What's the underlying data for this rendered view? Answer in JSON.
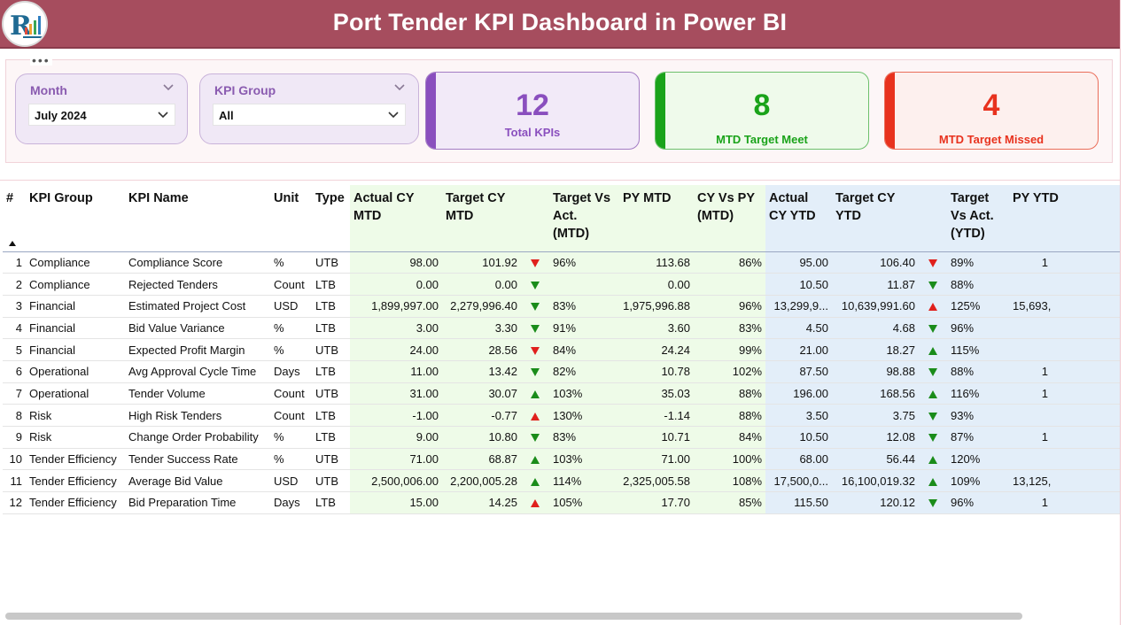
{
  "header": {
    "title": "Port Tender KPI Dashboard in Power BI"
  },
  "filters": {
    "month": {
      "label": "Month",
      "value": "July 2024"
    },
    "kpi_group": {
      "label": "KPI Group",
      "value": "All"
    }
  },
  "cards": {
    "total": {
      "value": "12",
      "label": "Total KPIs",
      "color": "#8a4fbe"
    },
    "meet": {
      "value": "8",
      "label": "MTD Target Meet",
      "color": "#1aa31a"
    },
    "missed": {
      "value": "4",
      "label": "MTD Target Missed",
      "color": "#e8321e"
    }
  },
  "colors": {
    "header_bg": "#a64d5e",
    "mtd_bg": "#eefbe8",
    "ytd_bg": "#e3eef9",
    "arrow_green": "#1a8c1a",
    "arrow_red": "#e0201c"
  },
  "table": {
    "headers": {
      "num": "#",
      "group": "KPI Group",
      "name": "KPI Name",
      "unit": "Unit",
      "type": "Type",
      "actual_mtd": "Actual CY MTD",
      "target_mtd": "Target CY MTD",
      "tva_mtd": "Target Vs Act. (MTD)",
      "py_mtd": "PY MTD",
      "cy_vs_py_mtd": "CY Vs PY (MTD)",
      "actual_ytd": "Actual CY YTD",
      "target_ytd": "Target CY YTD",
      "tva_ytd": "Target Vs Act. (YTD)",
      "py_ytd": "PY YTD"
    },
    "rows": [
      {
        "num": "1",
        "group": "Compliance",
        "name": "Compliance Score",
        "unit": "%",
        "type": "UTB",
        "actual_mtd": "98.00",
        "target_mtd": "101.92",
        "mtd_arrow": "down-red",
        "tva_mtd": "96%",
        "py_mtd": "113.68",
        "cvp_mtd": "86%",
        "actual_ytd": "95.00",
        "target_ytd": "106.40",
        "ytd_arrow": "down-red",
        "tva_ytd": "89%",
        "py_ytd": "1"
      },
      {
        "num": "2",
        "group": "Compliance",
        "name": "Rejected Tenders",
        "unit": "Count",
        "type": "LTB",
        "actual_mtd": "0.00",
        "target_mtd": "0.00",
        "mtd_arrow": "down-green",
        "tva_mtd": "",
        "py_mtd": "0.00",
        "cvp_mtd": "",
        "actual_ytd": "10.50",
        "target_ytd": "11.87",
        "ytd_arrow": "down-green",
        "tva_ytd": "88%",
        "py_ytd": ""
      },
      {
        "num": "3",
        "group": "Financial",
        "name": "Estimated Project Cost",
        "unit": "USD",
        "type": "LTB",
        "actual_mtd": "1,899,997.00",
        "target_mtd": "2,279,996.40",
        "mtd_arrow": "down-green",
        "tva_mtd": "83%",
        "py_mtd": "1,975,996.88",
        "cvp_mtd": "96%",
        "actual_ytd": "13,299,9...",
        "target_ytd": "10,639,991.60",
        "ytd_arrow": "up-red",
        "tva_ytd": "125%",
        "py_ytd": "15,693,"
      },
      {
        "num": "4",
        "group": "Financial",
        "name": "Bid Value Variance",
        "unit": "%",
        "type": "LTB",
        "actual_mtd": "3.00",
        "target_mtd": "3.30",
        "mtd_arrow": "down-green",
        "tva_mtd": "91%",
        "py_mtd": "3.60",
        "cvp_mtd": "83%",
        "actual_ytd": "4.50",
        "target_ytd": "4.68",
        "ytd_arrow": "down-green",
        "tva_ytd": "96%",
        "py_ytd": ""
      },
      {
        "num": "5",
        "group": "Financial",
        "name": "Expected Profit Margin",
        "unit": "%",
        "type": "UTB",
        "actual_mtd": "24.00",
        "target_mtd": "28.56",
        "mtd_arrow": "down-red",
        "tva_mtd": "84%",
        "py_mtd": "24.24",
        "cvp_mtd": "99%",
        "actual_ytd": "21.00",
        "target_ytd": "18.27",
        "ytd_arrow": "up-green",
        "tva_ytd": "115%",
        "py_ytd": ""
      },
      {
        "num": "6",
        "group": "Operational",
        "name": "Avg Approval Cycle Time",
        "unit": "Days",
        "type": "LTB",
        "actual_mtd": "11.00",
        "target_mtd": "13.42",
        "mtd_arrow": "down-green",
        "tva_mtd": "82%",
        "py_mtd": "10.78",
        "cvp_mtd": "102%",
        "actual_ytd": "87.50",
        "target_ytd": "98.88",
        "ytd_arrow": "down-green",
        "tva_ytd": "88%",
        "py_ytd": "1"
      },
      {
        "num": "7",
        "group": "Operational",
        "name": "Tender Volume",
        "unit": "Count",
        "type": "UTB",
        "actual_mtd": "31.00",
        "target_mtd": "30.07",
        "mtd_arrow": "up-green",
        "tva_mtd": "103%",
        "py_mtd": "35.03",
        "cvp_mtd": "88%",
        "actual_ytd": "196.00",
        "target_ytd": "168.56",
        "ytd_arrow": "up-green",
        "tva_ytd": "116%",
        "py_ytd": "1"
      },
      {
        "num": "8",
        "group": "Risk",
        "name": "High Risk Tenders",
        "unit": "Count",
        "type": "LTB",
        "actual_mtd": "-1.00",
        "target_mtd": "-0.77",
        "mtd_arrow": "up-red",
        "tva_mtd": "130%",
        "py_mtd": "-1.14",
        "cvp_mtd": "88%",
        "actual_ytd": "3.50",
        "target_ytd": "3.75",
        "ytd_arrow": "down-green",
        "tva_ytd": "93%",
        "py_ytd": ""
      },
      {
        "num": "9",
        "group": "Risk",
        "name": "Change Order Probability",
        "unit": "%",
        "type": "LTB",
        "actual_mtd": "9.00",
        "target_mtd": "10.80",
        "mtd_arrow": "down-green",
        "tva_mtd": "83%",
        "py_mtd": "10.71",
        "cvp_mtd": "84%",
        "actual_ytd": "10.50",
        "target_ytd": "12.08",
        "ytd_arrow": "down-green",
        "tva_ytd": "87%",
        "py_ytd": "1"
      },
      {
        "num": "10",
        "group": "Tender Efficiency",
        "name": "Tender Success Rate",
        "unit": "%",
        "type": "UTB",
        "actual_mtd": "71.00",
        "target_mtd": "68.87",
        "mtd_arrow": "up-green",
        "tva_mtd": "103%",
        "py_mtd": "71.00",
        "cvp_mtd": "100%",
        "actual_ytd": "68.00",
        "target_ytd": "56.44",
        "ytd_arrow": "up-green",
        "tva_ytd": "120%",
        "py_ytd": ""
      },
      {
        "num": "11",
        "group": "Tender Efficiency",
        "name": "Average Bid Value",
        "unit": "USD",
        "type": "UTB",
        "actual_mtd": "2,500,006.00",
        "target_mtd": "2,200,005.28",
        "mtd_arrow": "up-green",
        "tva_mtd": "114%",
        "py_mtd": "2,325,005.58",
        "cvp_mtd": "108%",
        "actual_ytd": "17,500,0...",
        "target_ytd": "16,100,019.32",
        "ytd_arrow": "up-green",
        "tva_ytd": "109%",
        "py_ytd": "13,125,"
      },
      {
        "num": "12",
        "group": "Tender Efficiency",
        "name": "Bid Preparation Time",
        "unit": "Days",
        "type": "LTB",
        "actual_mtd": "15.00",
        "target_mtd": "14.25",
        "mtd_arrow": "up-red",
        "tva_mtd": "105%",
        "py_mtd": "17.70",
        "cvp_mtd": "85%",
        "actual_ytd": "115.50",
        "target_ytd": "120.12",
        "ytd_arrow": "down-green",
        "tva_ytd": "96%",
        "py_ytd": "1"
      }
    ]
  }
}
